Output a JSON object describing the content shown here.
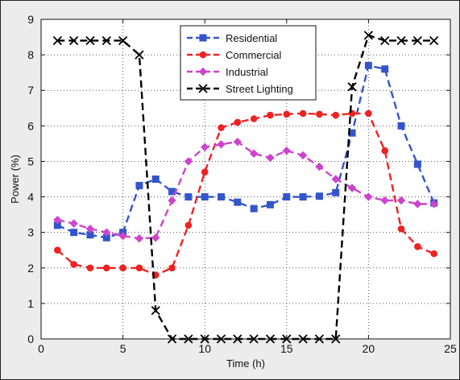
{
  "chart_data": {
    "type": "line",
    "title": "",
    "xlabel": "Time (h)",
    "ylabel": "Power (%)",
    "xlim": [
      0,
      25
    ],
    "ylim": [
      0,
      9
    ],
    "xticks": [
      0,
      5,
      10,
      15,
      20,
      25
    ],
    "yticks": [
      0,
      1,
      2,
      3,
      4,
      5,
      6,
      7,
      8,
      9
    ],
    "grid": true,
    "legend_position": "top-center",
    "x": [
      1,
      2,
      3,
      4,
      5,
      6,
      7,
      8,
      9,
      10,
      11,
      12,
      13,
      14,
      15,
      16,
      17,
      18,
      19,
      20,
      21,
      22,
      23,
      24
    ],
    "series": [
      {
        "name": "Residential",
        "color": "#3355cc",
        "marker": "square",
        "values": [
          3.2,
          3.0,
          2.93,
          2.85,
          3.0,
          4.32,
          4.5,
          4.15,
          4.0,
          4.0,
          4.0,
          3.85,
          3.67,
          3.78,
          4.0,
          4.0,
          4.02,
          4.12,
          5.8,
          7.7,
          7.6,
          6.0,
          4.92,
          3.83
        ]
      },
      {
        "name": "Commercial",
        "color": "#ee2222",
        "marker": "circle",
        "values": [
          2.5,
          2.1,
          2.0,
          2.0,
          2.0,
          2.0,
          1.8,
          2.0,
          3.2,
          4.7,
          5.95,
          6.1,
          6.2,
          6.3,
          6.33,
          6.35,
          6.33,
          6.3,
          6.35,
          6.35,
          5.3,
          3.1,
          2.6,
          2.4
        ]
      },
      {
        "name": "Industrial",
        "color": "#cc44cc",
        "marker": "diamond",
        "values": [
          3.35,
          3.25,
          3.1,
          3.0,
          2.9,
          2.83,
          2.85,
          3.9,
          5.0,
          5.4,
          5.48,
          5.55,
          5.22,
          5.1,
          5.3,
          5.17,
          4.85,
          4.5,
          4.25,
          4.0,
          3.9,
          3.9,
          3.8,
          3.8
        ]
      },
      {
        "name": "Street Lighting",
        "color": "#000000",
        "marker": "x",
        "values": [
          8.4,
          8.4,
          8.4,
          8.4,
          8.4,
          8.0,
          0.8,
          0.0,
          0.0,
          0.0,
          0.0,
          0.0,
          0.0,
          0.0,
          0.0,
          0.0,
          0.0,
          0.0,
          7.1,
          8.55,
          8.4,
          8.4,
          8.4,
          8.4
        ]
      }
    ]
  }
}
